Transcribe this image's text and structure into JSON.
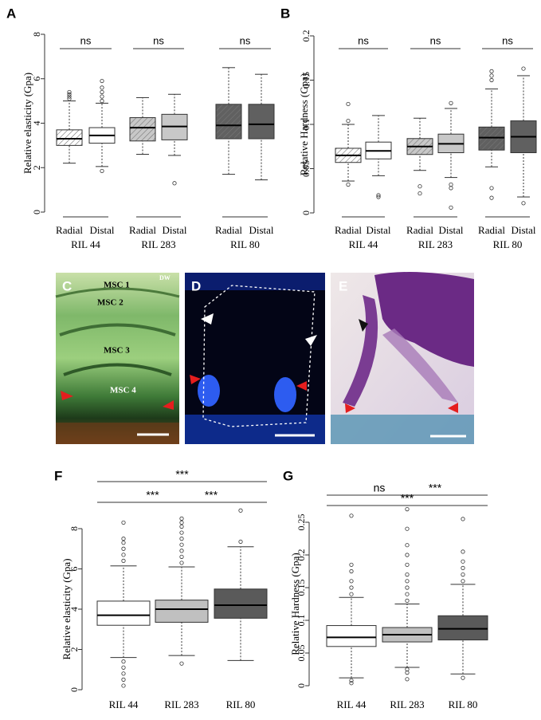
{
  "chart_data": [
    {
      "type": "box",
      "panel": "A",
      "ylabel": "Relative elasticity (Gpa)",
      "ylim": [
        0,
        8
      ],
      "yticks": [
        0,
        2,
        4,
        6,
        8
      ],
      "groups": [
        {
          "name": "RIL 44",
          "significance": "ns",
          "boxes": [
            {
              "category": "Radial",
              "color": "#ffffff",
              "hatch": true,
              "whisker_low": 2.2,
              "q1": 3.0,
              "median": 3.3,
              "q3": 3.7,
              "whisker_high": 5.0,
              "outliers": [
                5.1,
                5.2,
                5.3,
                5.4
              ]
            },
            {
              "category": "Distal",
              "color": "#ffffff",
              "hatch": false,
              "whisker_low": 2.05,
              "q1": 3.1,
              "median": 3.45,
              "q3": 3.8,
              "whisker_high": 4.9,
              "outliers": [
                5.0,
                5.2,
                5.4,
                5.6,
                5.9,
                1.85
              ]
            }
          ]
        },
        {
          "name": "RIL 283",
          "significance": "ns",
          "boxes": [
            {
              "category": "Radial",
              "color": "#c8c8c8",
              "hatch": true,
              "whisker_low": 2.6,
              "q1": 3.2,
              "median": 3.8,
              "q3": 4.25,
              "whisker_high": 5.15,
              "outliers": []
            },
            {
              "category": "Distal",
              "color": "#c8c8c8",
              "hatch": false,
              "whisker_low": 2.55,
              "q1": 3.25,
              "median": 3.85,
              "q3": 4.4,
              "whisker_high": 5.3,
              "outliers": [
                1.3
              ]
            }
          ]
        },
        {
          "name": "RIL 80",
          "significance": "ns",
          "boxes": [
            {
              "category": "Radial",
              "color": "#606060",
              "hatch": true,
              "whisker_low": 1.7,
              "q1": 3.3,
              "median": 3.9,
              "q3": 4.85,
              "whisker_high": 6.5,
              "outliers": []
            },
            {
              "category": "Distal",
              "color": "#606060",
              "hatch": false,
              "whisker_low": 1.45,
              "q1": 3.3,
              "median": 3.95,
              "q3": 4.85,
              "whisker_high": 6.2,
              "outliers": []
            }
          ]
        }
      ]
    },
    {
      "type": "box",
      "panel": "B",
      "ylabel": "Relative Hardness (Gpa)",
      "ylim": [
        0,
        0.2
      ],
      "yticks": [
        0,
        0.05,
        0.1,
        0.15,
        0.2
      ],
      "groups": [
        {
          "name": "RIL 44",
          "significance": "ns",
          "boxes": [
            {
              "category": "Radial",
              "color": "#ffffff",
              "hatch": true,
              "whisker_low": 0.036,
              "q1": 0.057,
              "median": 0.065,
              "q3": 0.073,
              "whisker_high": 0.1,
              "outliers": [
                0.104,
                0.123,
                0.032
              ]
            },
            {
              "category": "Distal",
              "color": "#ffffff",
              "hatch": false,
              "whisker_low": 0.042,
              "q1": 0.061,
              "median": 0.07,
              "q3": 0.08,
              "whisker_high": 0.11,
              "outliers": [
                0.02,
                0.018
              ]
            }
          ]
        },
        {
          "name": "RIL 283",
          "significance": "ns",
          "boxes": [
            {
              "category": "Radial",
              "color": "#c8c8c8",
              "hatch": true,
              "whisker_low": 0.048,
              "q1": 0.066,
              "median": 0.075,
              "q3": 0.084,
              "whisker_high": 0.107,
              "outliers": [
                0.022,
                0.03
              ]
            },
            {
              "category": "Distal",
              "color": "#c8c8c8",
              "hatch": false,
              "whisker_low": 0.04,
              "q1": 0.068,
              "median": 0.078,
              "q3": 0.089,
              "whisker_high": 0.118,
              "outliers": [
                0.124,
                0.032,
                0.028,
                0.006
              ]
            }
          ]
        },
        {
          "name": "RIL 80",
          "significance": "ns",
          "boxes": [
            {
              "category": "Radial",
              "color": "#606060",
              "hatch": true,
              "whisker_low": 0.052,
              "q1": 0.071,
              "median": 0.085,
              "q3": 0.097,
              "whisker_high": 0.14,
              "outliers": [
                0.15,
                0.155,
                0.16,
                0.028,
                0.017
              ]
            },
            {
              "category": "Distal",
              "color": "#606060",
              "hatch": false,
              "whisker_low": 0.018,
              "q1": 0.068,
              "median": 0.086,
              "q3": 0.104,
              "whisker_high": 0.155,
              "outliers": [
                0.163,
                0.011
              ]
            }
          ]
        }
      ]
    },
    {
      "type": "box",
      "panel": "F",
      "ylabel": "Relative elasticity (Gpa)",
      "ylim": [
        0,
        8
      ],
      "yticks": [
        0,
        2,
        4,
        6,
        8
      ],
      "groups": [
        {
          "name": "RIL 44",
          "boxes": [
            {
              "color": "#ffffff",
              "hatch": false,
              "whisker_low": 1.6,
              "q1": 3.2,
              "median": 3.7,
              "q3": 4.4,
              "whisker_high": 6.15,
              "outliers": [
                6.4,
                6.7,
                7.0,
                7.3,
                7.5,
                8.3,
                1.4,
                1.1,
                0.8,
                0.5,
                0.2
              ]
            }
          ]
        },
        {
          "name": "RIL 283",
          "boxes": [
            {
              "color": "#c0c0c0",
              "hatch": false,
              "whisker_low": 1.7,
              "q1": 3.35,
              "median": 4.0,
              "q3": 4.45,
              "whisker_high": 6.1,
              "outliers": [
                6.3,
                6.6,
                6.9,
                7.2,
                7.5,
                7.8,
                8.1,
                8.3,
                8.5,
                1.3
              ]
            }
          ]
        },
        {
          "name": "RIL 80",
          "boxes": [
            {
              "color": "#5a5a5a",
              "hatch": false,
              "whisker_low": 1.45,
              "q1": 3.55,
              "median": 4.2,
              "q3": 5.0,
              "whisker_high": 7.1,
              "outliers": [
                7.35,
                8.9
              ]
            }
          ]
        }
      ],
      "comparisons": [
        {
          "label": "***",
          "groups": [
            "RIL 44",
            "RIL 80"
          ]
        },
        {
          "label": "***",
          "groups": [
            "RIL 44",
            "RIL 283"
          ]
        },
        {
          "label": "***",
          "groups": [
            "RIL 283",
            "RIL 80"
          ]
        }
      ]
    },
    {
      "type": "box",
      "panel": "G",
      "ylabel": "Relative Hardness (Gpa)",
      "ylim": [
        0,
        0.25
      ],
      "yticks": [
        0,
        0.05,
        0.1,
        0.15,
        0.2,
        0.25
      ],
      "groups": [
        {
          "name": "RIL 44",
          "boxes": [
            {
              "color": "#ffffff",
              "hatch": false,
              "whisker_low": 0.012,
              "q1": 0.06,
              "median": 0.074,
              "q3": 0.092,
              "whisker_high": 0.135,
              "outliers": [
                0.14,
                0.15,
                0.16,
                0.175,
                0.185,
                0.26,
                0.008,
                0.004
              ]
            }
          ]
        },
        {
          "name": "RIL 283",
          "boxes": [
            {
              "color": "#c0c0c0",
              "hatch": false,
              "whisker_low": 0.028,
              "q1": 0.067,
              "median": 0.078,
              "q3": 0.089,
              "whisker_high": 0.125,
              "outliers": [
                0.13,
                0.14,
                0.15,
                0.16,
                0.17,
                0.185,
                0.2,
                0.215,
                0.24,
                0.27,
                0.025,
                0.02,
                0.01
              ]
            }
          ]
        },
        {
          "name": "RIL 80",
          "boxes": [
            {
              "color": "#5a5a5a",
              "hatch": false,
              "whisker_low": 0.018,
              "q1": 0.07,
              "median": 0.087,
              "q3": 0.107,
              "whisker_high": 0.155,
              "outliers": [
                0.16,
                0.17,
                0.18,
                0.19,
                0.205,
                0.255,
                0.012
              ]
            }
          ]
        }
      ],
      "comparisons": [
        {
          "label": "ns",
          "groups": [
            "RIL 44",
            "RIL 283"
          ]
        },
        {
          "label": "***",
          "groups": [
            "RIL 283",
            "RIL 80"
          ]
        },
        {
          "label": "***",
          "groups": [
            "RIL 44",
            "RIL 80"
          ]
        }
      ]
    }
  ],
  "micrographs": [
    {
      "panel": "C",
      "labels": [
        "MSC 1",
        "MSC 2",
        "MSC 3",
        "MSC 4",
        "DW"
      ]
    },
    {
      "panel": "D"
    },
    {
      "panel": "E"
    }
  ]
}
